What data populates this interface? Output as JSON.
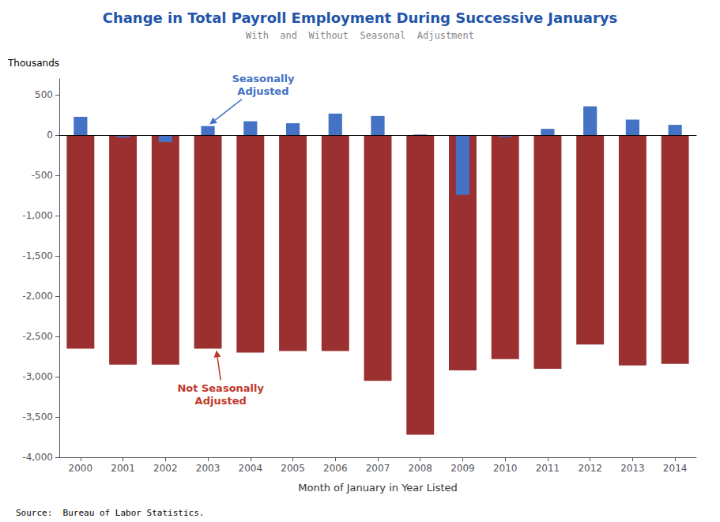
{
  "chart_data": {
    "type": "bar",
    "title": "Change in Total Payroll Employment During Successive Januarys",
    "subtitle": "With  and  Without  Seasonal  Adjustment",
    "xlabel": "Month of January in Year Listed",
    "ylabel": "Thousands",
    "source": "Source:  Bureau of Labor Statistics.",
    "categories": [
      "2000",
      "2001",
      "2002",
      "2003",
      "2004",
      "2005",
      "2006",
      "2007",
      "2008",
      "2009",
      "2010",
      "2011",
      "2012",
      "2013",
      "2014"
    ],
    "series": [
      {
        "color": "#9B3030",
        "values": [
          -2650,
          -2850,
          -2850,
          -2650,
          -2700,
          -2680,
          -2680,
          -3050,
          -3720,
          -2920,
          -2780,
          -2900,
          -2600,
          -2860,
          -2840
        ]
      },
      {
        "color": "#4472C4",
        "values": [
          230,
          -25,
          -85,
          115,
          175,
          150,
          270,
          240,
          10,
          -741,
          -20,
          80,
          360,
          195,
          130
        ]
      }
    ],
    "annotations": [
      {
        "text": "Not Seasonally\nAdjusted",
        "color": "#C0392B"
      },
      {
        "text": "Seasonally\nAdjusted",
        "color": "#4472C4"
      }
    ],
    "ylim": [
      -4000,
      700
    ],
    "yticks": [
      {
        "value": -4000,
        "label": "-4,000"
      },
      {
        "value": -3500,
        "label": "-3,500"
      },
      {
        "value": -3000,
        "label": "-3,000"
      },
      {
        "value": -2500,
        "label": "-2,500"
      },
      {
        "value": -2000,
        "label": "-2,000"
      },
      {
        "value": -1500,
        "label": "-1,500"
      },
      {
        "value": -1000,
        "label": "-1,000"
      },
      {
        "value": -500,
        "label": "-500"
      },
      0,
      500
    ],
    "grid": false
  }
}
